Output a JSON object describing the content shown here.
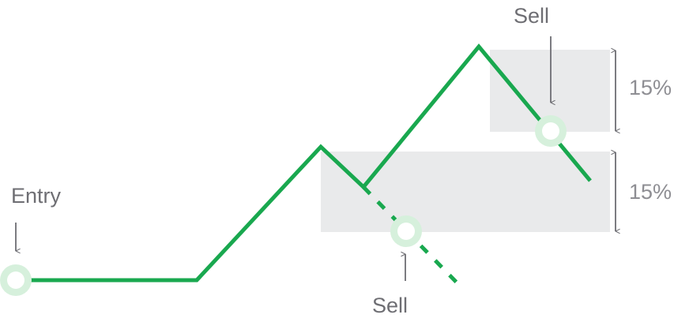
{
  "labels": {
    "entry": "Entry",
    "sell_top": "Sell",
    "sell_bottom": "Sell"
  },
  "bands": {
    "upper_percent": "15%",
    "lower_percent": "15%"
  },
  "colors": {
    "price_line": "#19a84f",
    "marker_ring": "#d6f0dc",
    "band_fill": "#e9eaeb",
    "text": "#6e6e73"
  },
  "icons": {
    "entry_arrow": "arrow-down-icon",
    "sell_top_arrow": "arrow-down-icon",
    "sell_bottom_arrow": "arrow-up-icon",
    "upper_dimension": "double-arrow-vertical-icon",
    "lower_dimension": "double-arrow-vertical-icon"
  }
}
